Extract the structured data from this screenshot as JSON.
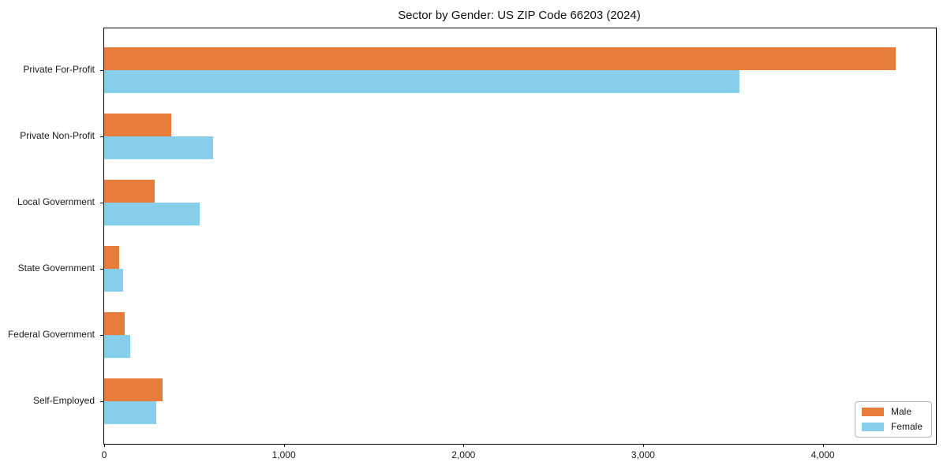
{
  "chart_data": {
    "type": "bar",
    "orientation": "horizontal",
    "title": "Sector by Gender: US ZIP Code 66203 (2024)",
    "categories": [
      "Private For-Profit",
      "Private Non-Profit",
      "Local Government",
      "State Government",
      "Federal Government",
      "Self-Employed"
    ],
    "series": [
      {
        "name": "Male",
        "color": "#E87D3B",
        "values": [
          4405,
          375,
          280,
          85,
          115,
          325
        ]
      },
      {
        "name": "Female",
        "color": "#87CEEB",
        "values": [
          3535,
          605,
          530,
          105,
          145,
          290
        ]
      }
    ],
    "xlabel": "",
    "ylabel": "",
    "xlim": [
      0,
      4630
    ],
    "x_ticks": [
      0,
      1000,
      2000,
      3000,
      4000
    ],
    "x_tick_labels": [
      "0",
      "1,000",
      "2,000",
      "3,000",
      "4,000"
    ],
    "grid": false,
    "legend_position": "lower right",
    "colors": {
      "axis": "#000000",
      "background": "#ffffff"
    }
  }
}
